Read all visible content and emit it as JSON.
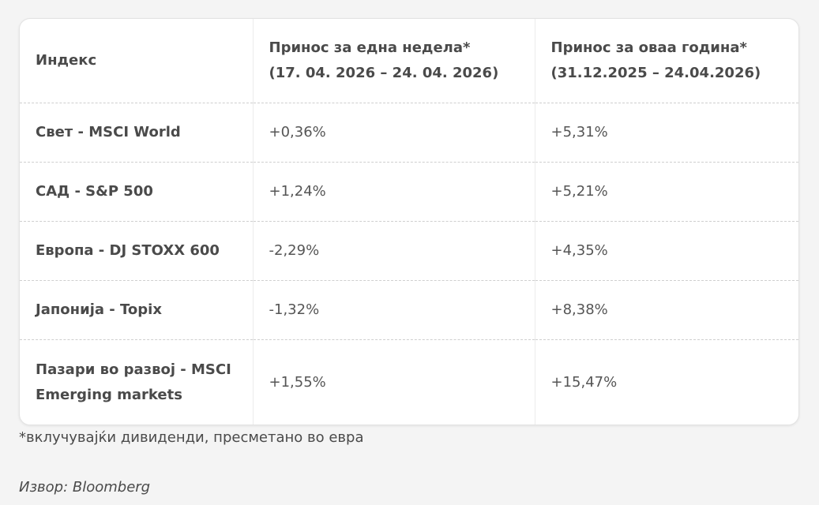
{
  "table": {
    "headers": [
      {
        "line1": "Индекс",
        "line2": ""
      },
      {
        "line1": "Принос за една недела*",
        "line2": "(17. 04. 2026 – 24. 04. 2026)"
      },
      {
        "line1": "Принос за оваа година*",
        "line2": "(31.12.2025 – 24.04.2026)"
      }
    ],
    "rows": [
      {
        "index": "Свет - MSCI World",
        "week": "+0,36%",
        "ytd": "+5,31%"
      },
      {
        "index": "САД - S&P 500",
        "week": "+1,24%",
        "ytd": "+5,21%"
      },
      {
        "index": "Европа - DJ STOXX 600",
        "week": "-2,29%",
        "ytd": "+4,35%"
      },
      {
        "index": "Јапонија - Topix",
        "week": "-1,32%",
        "ytd": "+8,38%"
      },
      {
        "index": "Пазари во развој - MSCI Emerging markets",
        "week": "+1,55%",
        "ytd": "+15,47%"
      }
    ]
  },
  "footnote": "*вклучувајќи дивиденди, пресметано во евра",
  "source": "Извор: Bloomberg"
}
